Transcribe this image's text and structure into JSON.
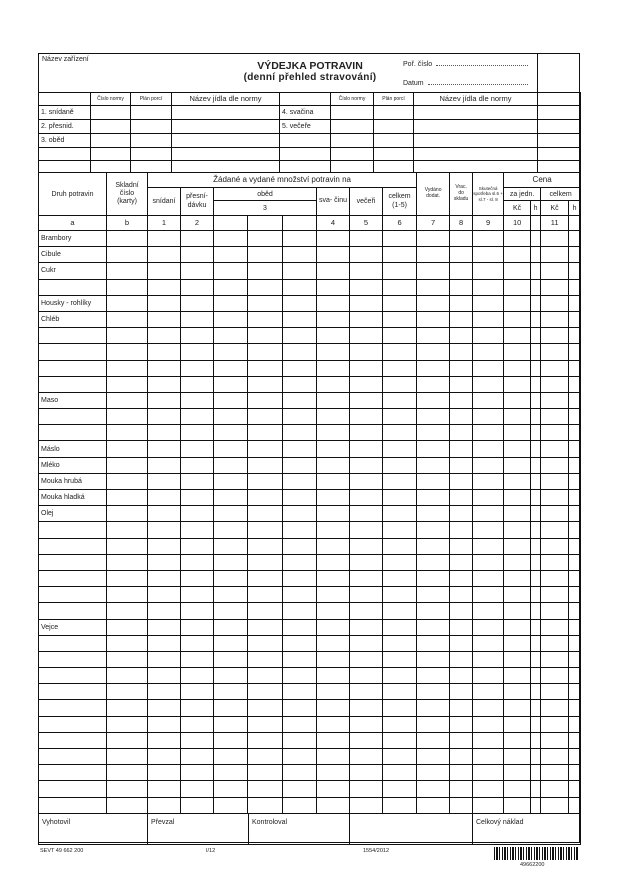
{
  "header": {
    "facility_label": "Název zařízení",
    "title": "VÝDEJKA POTRAVIN",
    "subtitle": "(denní přehled stravování)",
    "number_label": "Poř. číslo",
    "date_label": "Datum"
  },
  "top_table": {
    "col_headers": [
      "Číslo normy",
      "Plán porcí",
      "Název jídla dle normy"
    ],
    "left_meals": [
      "1. snídaně",
      "2. přesnid.",
      "3. oběd",
      "",
      ""
    ],
    "right_meals": [
      "4. svačina",
      "5. večeře",
      "",
      "",
      ""
    ]
  },
  "main_table": {
    "h_food": "Druh potravin",
    "h_stock": "Skladní číslo (karty)",
    "h_group": "Žádané a vydané množství potravin na",
    "h_issued": "Vydáno dodat.",
    "h_returned": "Vrac. do skladu",
    "h_actual": "Skutečná spotřeba sl.6 + sl.7 - sl. 8",
    "h_price": "Cena",
    "h_breakfast": "snídaní",
    "h_snack1": "přesní- dávku",
    "h_lunch": "oběd",
    "h_lunch_num": "3",
    "h_snack2": "sva- činu",
    "h_dinner": "večeři",
    "h_total": "celkem (1-5)",
    "h_unit": "za jedn.",
    "h_sum": "celkem",
    "h_kc": "Kč",
    "h_h": "h",
    "col_numbers": [
      "a",
      "b",
      "1",
      "2",
      "",
      "",
      "",
      "4",
      "5",
      "6",
      "7",
      "8",
      "9",
      "10",
      "",
      "11",
      ""
    ],
    "rows": [
      "Brambory",
      "Cibule",
      "Cukr",
      "",
      "Housky - rohlíky",
      "Chléb",
      "",
      "",
      "",
      "",
      "Maso",
      "",
      "",
      "Máslo",
      "Mléko",
      "Mouka hrubá",
      "Mouka hladká",
      "Olej",
      "",
      "",
      "",
      "",
      "",
      "",
      "Vejce",
      "",
      "",
      "",
      "",
      "",
      "",
      "",
      "",
      "",
      "",
      ""
    ]
  },
  "footer": {
    "prepared": "Vyhotovil",
    "received": "Převzal",
    "checked": "Kontroloval",
    "blank": "",
    "total_cost": "Celkový náklad"
  },
  "print_info": {
    "code": "SEVT  49 662 200",
    "edition": "I/12",
    "reg": "1554/2012",
    "barcode_number": "49662200"
  }
}
